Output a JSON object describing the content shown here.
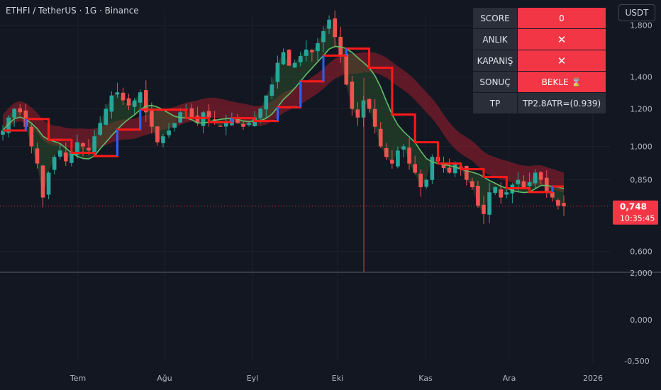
{
  "header": {
    "title": "ETHFI / TetherUS · 1G · Binance",
    "currency_button": "USDT"
  },
  "panel": {
    "rows": [
      {
        "key": "SCORE",
        "value": "0",
        "style": "red"
      },
      {
        "key": "ANLIK",
        "value": "✕",
        "style": "red"
      },
      {
        "key": "KAPANIŞ",
        "value": "✕",
        "style": "red"
      },
      {
        "key": "SONUÇ",
        "value": "BEKLE ⌛",
        "style": "red"
      },
      {
        "key": "TP",
        "value": "TP2.8ATR=(0.939)",
        "style": "dark"
      }
    ]
  },
  "price_tag": {
    "price": "0,748",
    "countdown": "10:35:45",
    "color": "#f23645"
  },
  "colors": {
    "background": "#131722",
    "up": "#26a69a",
    "down": "#ef5350",
    "ma_green": "#66bb6a",
    "trail_red": "#ff1a1a",
    "trail_blue": "#2962ff",
    "band": "#a01e2c",
    "cloud": "#2e5e2e"
  },
  "chart_data": {
    "type": "candlestick",
    "main_pane": {
      "scale": "log",
      "ylim": [
        0.55,
        1.9
      ],
      "y_ticks": [
        {
          "label": "1,800",
          "value": 1.8
        },
        {
          "label": "1,400",
          "value": 1.4
        },
        {
          "label": "1,200",
          "value": 1.2
        },
        {
          "label": "1,000",
          "value": 1.0
        },
        {
          "label": "0,850",
          "value": 0.85
        },
        {
          "label": "0,600",
          "value": 0.6
        }
      ],
      "current_price": 0.748,
      "close_series_approx": [
        1.08,
        1.15,
        1.2,
        1.18,
        1.1,
        1.0,
        0.92,
        0.78,
        0.88,
        0.95,
        0.98,
        0.93,
        0.97,
        1.02,
        1.0,
        0.98,
        1.05,
        1.12,
        1.2,
        1.28,
        1.3,
        1.25,
        1.22,
        1.25,
        1.3,
        1.18,
        1.1,
        1.02,
        1.05,
        1.08,
        1.12,
        1.18,
        1.2,
        1.15,
        1.12,
        1.18,
        1.15,
        1.12,
        1.1,
        1.12,
        1.15,
        1.12,
        1.1,
        1.12,
        1.15,
        1.2,
        1.28,
        1.35,
        1.5,
        1.58,
        1.48,
        1.5,
        1.55,
        1.6,
        1.58,
        1.65,
        1.75,
        1.85,
        1.7,
        1.55,
        1.35,
        1.2,
        1.15,
        1.25,
        1.2,
        1.1,
        1.0,
        0.95,
        0.92,
        0.98,
        1.0,
        0.92,
        0.88,
        0.82,
        0.85,
        0.95,
        0.93,
        0.9,
        0.88,
        0.92,
        0.9,
        0.85,
        0.82,
        0.75,
        0.72,
        0.8,
        0.82,
        0.78,
        0.8,
        0.83,
        0.85,
        0.82,
        0.84,
        0.88,
        0.85,
        0.8,
        0.78,
        0.75,
        0.748
      ]
    },
    "lower_pane": {
      "y_ticks": [
        {
          "label": "2,000",
          "value": 2.0
        },
        {
          "label": "0,000",
          "value": 0.0
        },
        {
          "label": "-0,500",
          "value": -0.5
        }
      ]
    },
    "x_ticks": [
      "Tem",
      "Ağu",
      "Eyl",
      "Eki",
      "Kas",
      "Ara",
      "2026"
    ]
  }
}
